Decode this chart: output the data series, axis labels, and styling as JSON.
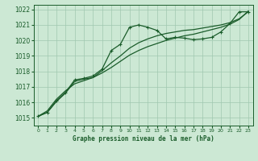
{
  "background_color": "#cce8d4",
  "plot_bg_color": "#cce8d4",
  "grid_color": "#a0c8b0",
  "line_color": "#1a5c2a",
  "title": "Graphe pression niveau de la mer (hPa)",
  "xlim": [
    -0.5,
    23.5
  ],
  "ylim": [
    1014.5,
    1022.3
  ],
  "yticks": [
    1015,
    1016,
    1017,
    1018,
    1019,
    1020,
    1021,
    1022
  ],
  "xticks": [
    0,
    1,
    2,
    3,
    4,
    5,
    6,
    7,
    8,
    9,
    10,
    11,
    12,
    13,
    14,
    15,
    16,
    17,
    18,
    19,
    20,
    21,
    22,
    23
  ],
  "series1_x": [
    0,
    1,
    2,
    3,
    4,
    5,
    6,
    7,
    8,
    9,
    10,
    11,
    12,
    13,
    14,
    15,
    16,
    17,
    18,
    19,
    20,
    21,
    22,
    23
  ],
  "series1_y": [
    1015.1,
    1015.35,
    1016.1,
    1016.65,
    1017.45,
    1017.55,
    1017.7,
    1018.15,
    1019.35,
    1019.75,
    1020.85,
    1021.0,
    1020.85,
    1020.65,
    1020.1,
    1020.2,
    1020.15,
    1020.05,
    1020.1,
    1020.2,
    1020.55,
    1021.1,
    1021.85,
    1021.85
  ],
  "series2_x": [
    0,
    1,
    2,
    3,
    4,
    5,
    6,
    7,
    8,
    9,
    10,
    11,
    12,
    13,
    14,
    15,
    16,
    17,
    18,
    19,
    20,
    21,
    22,
    23
  ],
  "series2_y": [
    1015.1,
    1015.35,
    1016.05,
    1016.6,
    1017.35,
    1017.5,
    1017.6,
    1018.05,
    1018.55,
    1019.0,
    1019.5,
    1019.85,
    1020.1,
    1020.3,
    1020.45,
    1020.55,
    1020.65,
    1020.7,
    1020.8,
    1020.9,
    1021.0,
    1021.15,
    1021.4,
    1021.85
  ],
  "series3_x": [
    0,
    1,
    2,
    3,
    4,
    5,
    6,
    7,
    8,
    9,
    10,
    11,
    12,
    13,
    14,
    15,
    16,
    17,
    18,
    19,
    20,
    21,
    22,
    23
  ],
  "series3_y": [
    1015.1,
    1015.45,
    1016.2,
    1016.75,
    1017.2,
    1017.4,
    1017.6,
    1017.9,
    1018.25,
    1018.65,
    1019.05,
    1019.35,
    1019.6,
    1019.8,
    1020.0,
    1020.15,
    1020.3,
    1020.4,
    1020.55,
    1020.7,
    1020.85,
    1021.05,
    1021.35,
    1021.9
  ]
}
